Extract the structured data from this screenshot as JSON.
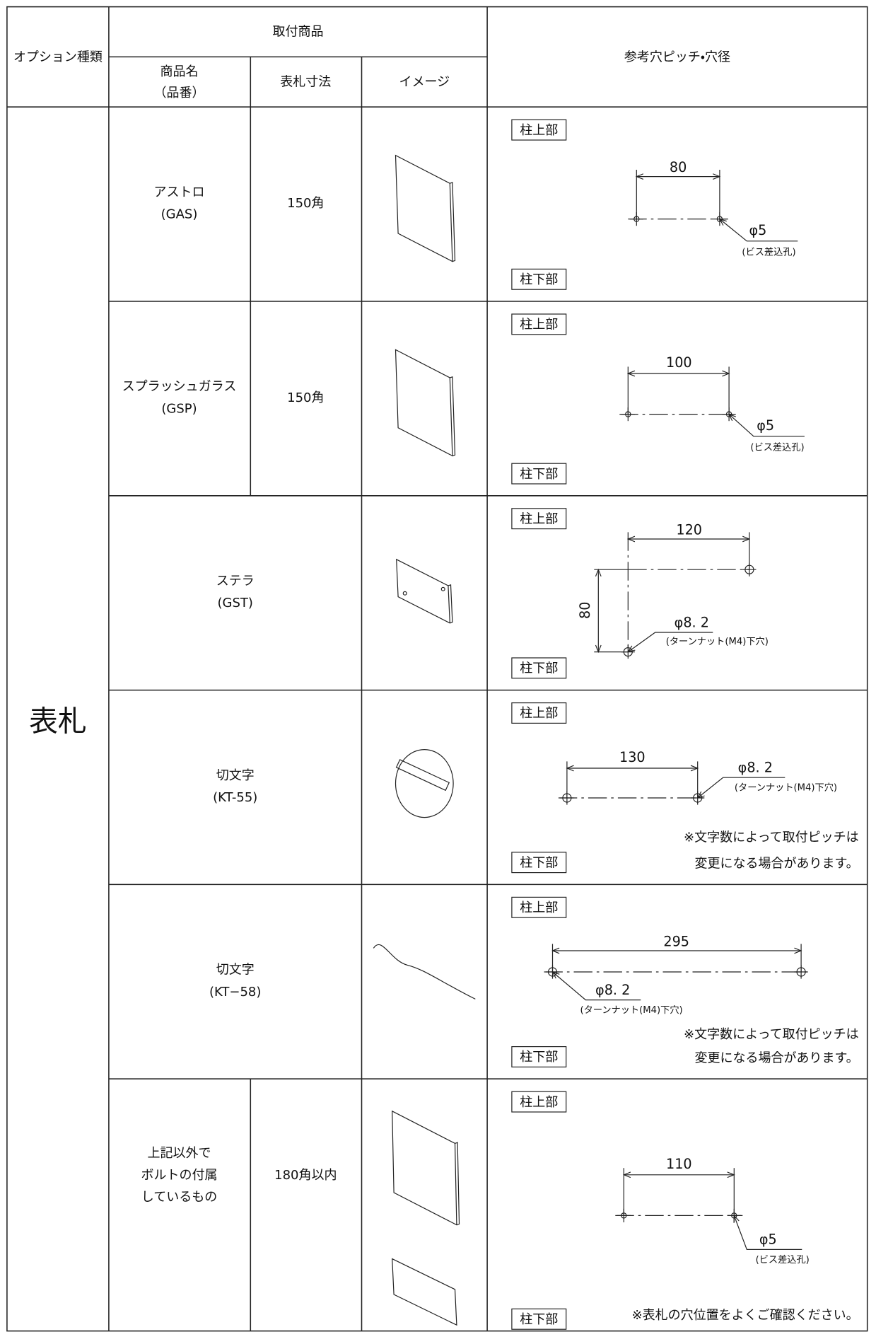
{
  "header": {
    "option_type": "オプション種類",
    "product": "取付商品",
    "name": "商品名",
    "code": "（品番）",
    "size": "表札寸法",
    "image": "イメージ",
    "pitch": "参考穴ピッチ・穴径"
  },
  "category": "表札",
  "rows": [
    {
      "name": [
        "アストロ"
      ],
      "code": "(GAS)",
      "size": "150角",
      "top_label": "柱上部",
      "bottom_label": "柱下部",
      "pitch": "80",
      "hole": "φ5",
      "hole_note": "(ビス差込孔)"
    },
    {
      "name": [
        "スプラッシュガラス"
      ],
      "code": "(GSP)",
      "size": "150角",
      "top_label": "柱上部",
      "bottom_label": "柱下部",
      "pitch": "100",
      "hole": "φ5",
      "hole_note": "(ビス差込孔)"
    },
    {
      "name": [
        "ステラ"
      ],
      "code": "(GST)",
      "top_label": "柱上部",
      "bottom_label": "柱下部",
      "pitch": "120",
      "vpitch": "80",
      "hole": "φ8. 2",
      "hole_note": "(ターンナット(M4)下穴)"
    },
    {
      "name": [
        "切文字"
      ],
      "code": "(KT-55)",
      "top_label": "柱上部",
      "bottom_label": "柱下部",
      "pitch": "130",
      "hole": "φ8. 2",
      "hole_note": "(ターンナット(M4)下穴)",
      "notes": [
        "※文字数によって取付ピッチは",
        "変更になる場合があります。"
      ]
    },
    {
      "name": [
        "切文字"
      ],
      "code": "(KT−58)",
      "top_label": "柱上部",
      "bottom_label": "柱下部",
      "pitch": "295",
      "hole": "φ8. 2",
      "hole_note": "(ターンナット(M4)下穴)",
      "notes": [
        "※文字数によって取付ピッチは",
        "変更になる場合があります。"
      ]
    },
    {
      "name": [
        "上記以外で",
        "ボルトの付属",
        "しているもの"
      ],
      "size": "180角以内",
      "top_label": "柱上部",
      "bottom_label": "柱下部",
      "pitch": "110",
      "hole": "φ5",
      "hole_note": "(ビス差込孔)",
      "notes": [
        "※表札の穴位置をよくご確認ください。"
      ]
    }
  ]
}
